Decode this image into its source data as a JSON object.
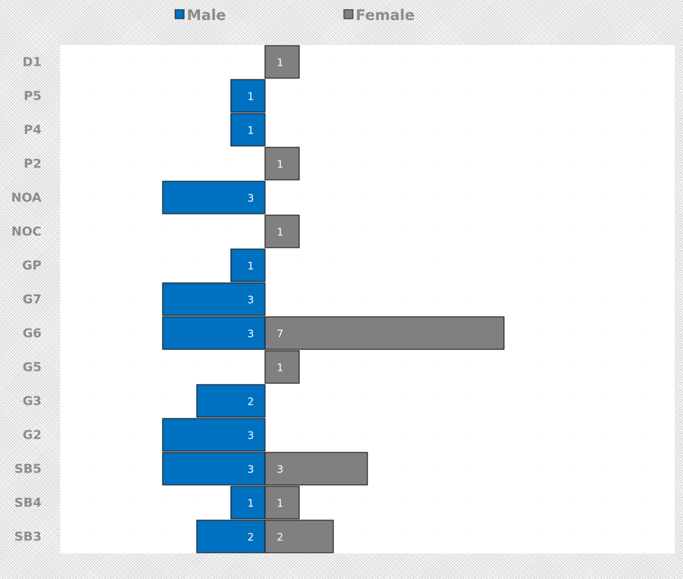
{
  "chart_data": {
    "type": "bar",
    "orientation": "horizontal",
    "layout": "diverging",
    "categories": [
      "D1",
      "P5",
      "P4",
      "P2",
      "NOA",
      "NOC",
      "GP",
      "G7",
      "G6",
      "G5",
      "G3",
      "G2",
      "SB5",
      "SB4",
      "SB3"
    ],
    "series": [
      {
        "name": "Male",
        "color": "#0070c0",
        "values": [
          0,
          1,
          1,
          0,
          3,
          0,
          1,
          3,
          3,
          0,
          2,
          3,
          3,
          1,
          2
        ]
      },
      {
        "name": "Female",
        "color": "#808080",
        "values": [
          1,
          0,
          0,
          1,
          0,
          1,
          0,
          0,
          7,
          1,
          0,
          0,
          3,
          1,
          2
        ]
      }
    ],
    "xlim": [
      -6,
      12
    ],
    "grid": true,
    "legend_position": "top-center",
    "title": "",
    "xlabel": "",
    "ylabel": ""
  }
}
